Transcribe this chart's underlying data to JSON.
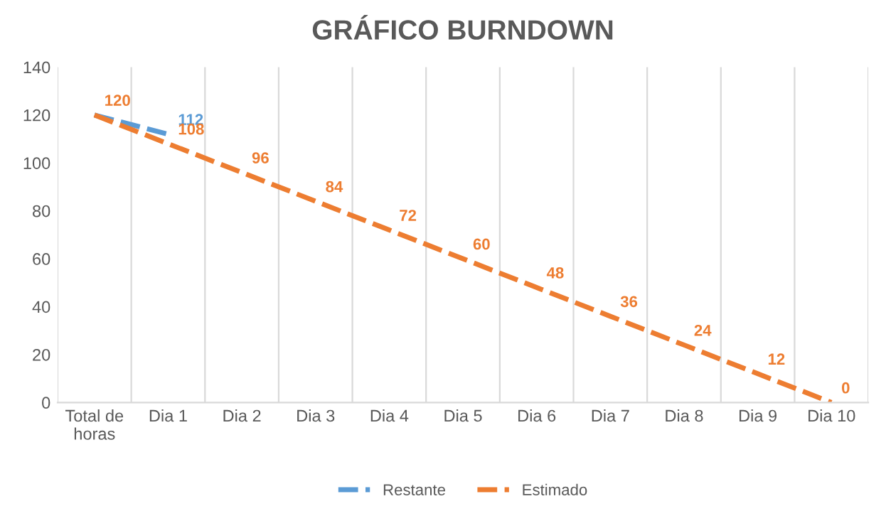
{
  "chart_data": {
    "type": "line",
    "title": "GRÁFICO BURNDOWN",
    "categories": [
      "Total de\nhoras",
      "Dia 1",
      "Dia 2",
      "Dia 3",
      "Dia 4",
      "Dia 5",
      "Dia 6",
      "Dia 7",
      "Dia 8",
      "Dia 9",
      "Dia 10"
    ],
    "series": [
      {
        "name": "Restante",
        "color": "#5b9bd5",
        "values": [
          120,
          112,
          null,
          null,
          null,
          null,
          null,
          null,
          null,
          null,
          null
        ],
        "value_labels": [
          null,
          "112",
          null,
          null,
          null,
          null,
          null,
          null,
          null,
          null,
          null
        ]
      },
      {
        "name": "Estimado",
        "color": "#ed7d31",
        "values": [
          120,
          108,
          96,
          84,
          72,
          60,
          48,
          36,
          24,
          12,
          0
        ],
        "value_labels": [
          "120",
          "108",
          "96",
          "84",
          "72",
          "60",
          "48",
          "36",
          "24",
          "12",
          "0"
        ]
      }
    ],
    "ylim": [
      0,
      140
    ],
    "yticks": [
      0,
      20,
      40,
      60,
      80,
      100,
      120,
      140
    ],
    "grid": "x",
    "legend": "bottom",
    "line_style": "dashed"
  }
}
